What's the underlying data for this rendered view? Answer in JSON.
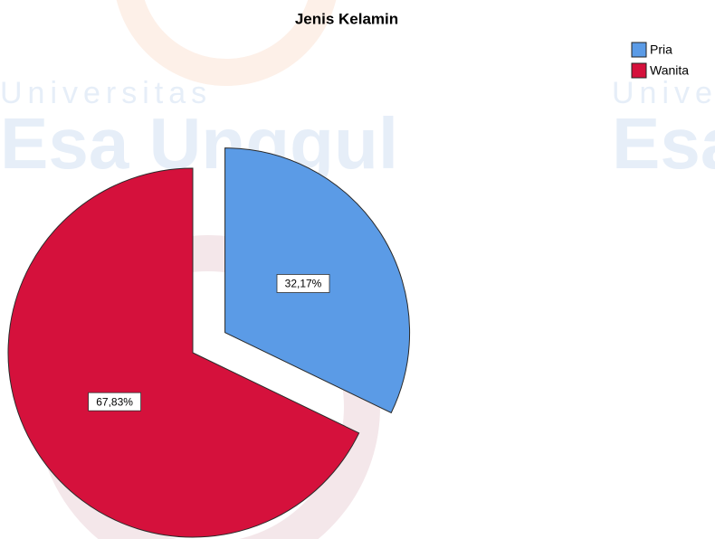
{
  "watermark": [
    "Universitas",
    "Esa Unggul",
    "Univer",
    "Esa"
  ],
  "chart_data": {
    "type": "pie",
    "title": "Jenis Kelamin",
    "categories": [
      "Pria",
      "Wanita"
    ],
    "values": [
      32.17,
      67.83
    ],
    "value_labels": [
      "32,17%",
      "67,83%"
    ],
    "colors": [
      "#5b9be6",
      "#d5113c"
    ],
    "legend": "top-right"
  }
}
